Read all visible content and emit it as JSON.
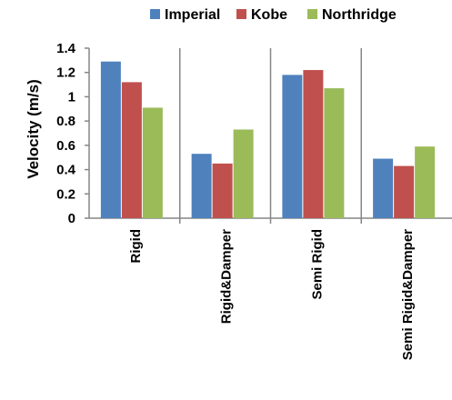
{
  "chart_data": {
    "type": "bar",
    "title": "",
    "xlabel": "",
    "ylabel": "Velocity (m/s)",
    "ylim": [
      0,
      1.4
    ],
    "yticks": [
      0,
      0.2,
      0.4,
      0.6,
      0.8,
      1,
      1.2,
      1.4
    ],
    "ytick_labels": [
      "0",
      "0.2",
      "0.4",
      "0.6",
      "0.8",
      "1",
      "1.2",
      "1.4"
    ],
    "categories": [
      "Rigid",
      "Rigid&Damper",
      "Semi Rigid",
      "Semi Rigid&Damper"
    ],
    "series": [
      {
        "name": "Imperial",
        "color": "#4F81BD",
        "values": [
          1.29,
          0.53,
          1.18,
          0.49
        ]
      },
      {
        "name": "Kobe",
        "color": "#C0504D",
        "values": [
          1.12,
          0.45,
          1.22,
          0.43
        ]
      },
      {
        "name": "Northridge",
        "color": "#9BBB59",
        "values": [
          0.91,
          0.73,
          1.07,
          0.59
        ]
      }
    ],
    "grid": false,
    "category_separators": true,
    "legend_position": "top",
    "axis_color": "#868686"
  }
}
